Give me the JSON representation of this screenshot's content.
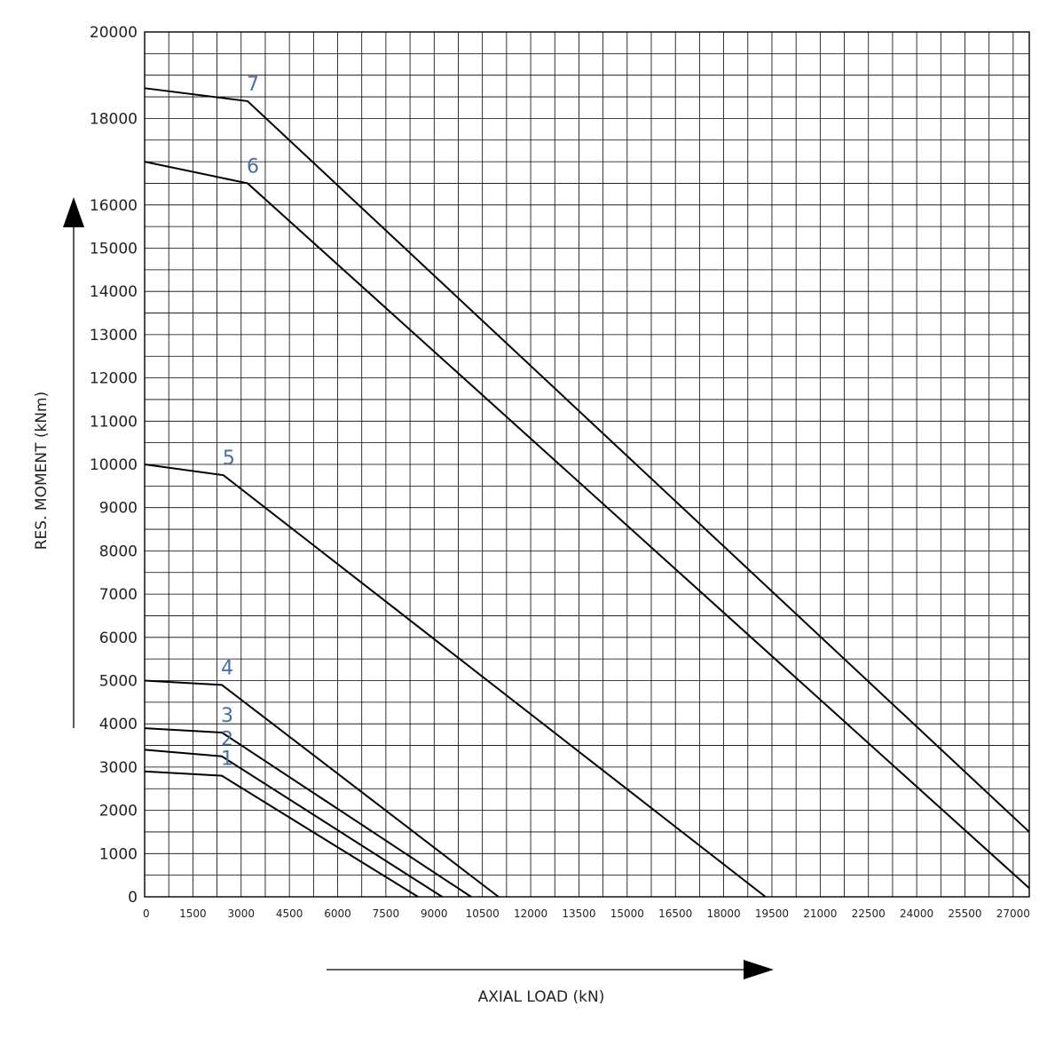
{
  "chart_data": {
    "type": "line",
    "title": "",
    "xlabel": "AXIAL LOAD (kN)",
    "ylabel": "RES. MOMENT (kNm)",
    "xlim": [
      0,
      27500
    ],
    "ylim": [
      0,
      20000
    ],
    "x_ticks": [
      0,
      1500,
      3000,
      4500,
      6000,
      7500,
      9000,
      10500,
      12000,
      13500,
      15000,
      16500,
      18000,
      19500,
      21000,
      22500,
      24000,
      25500,
      27000
    ],
    "y_ticks": [
      0,
      1000,
      2000,
      3000,
      4000,
      5000,
      6000,
      7000,
      8000,
      9000,
      10000,
      11000,
      12000,
      13000,
      14000,
      15000,
      16000,
      18000,
      20000
    ],
    "grid": true,
    "line_color": "#000000",
    "label_color": "#4a6fa5",
    "series": [
      {
        "name": "1",
        "x": [
          0,
          2400,
          8500
        ],
        "y": [
          2900,
          2800,
          0
        ]
      },
      {
        "name": "2",
        "x": [
          0,
          2400,
          9250
        ],
        "y": [
          3400,
          3250,
          0
        ]
      },
      {
        "name": "3",
        "x": [
          0,
          2400,
          10150
        ],
        "y": [
          3900,
          3800,
          0
        ]
      },
      {
        "name": "4",
        "x": [
          0,
          2400,
          11000
        ],
        "y": [
          5000,
          4900,
          0
        ]
      },
      {
        "name": "5",
        "x": [
          0,
          2450,
          19300
        ],
        "y": [
          10000,
          9750,
          0
        ]
      },
      {
        "name": "6",
        "x": [
          0,
          3200,
          27500
        ],
        "y": [
          17000,
          16500,
          200
        ]
      },
      {
        "name": "7",
        "x": [
          0,
          3200,
          27500
        ],
        "y": [
          18700,
          18400,
          1500
        ]
      }
    ]
  }
}
